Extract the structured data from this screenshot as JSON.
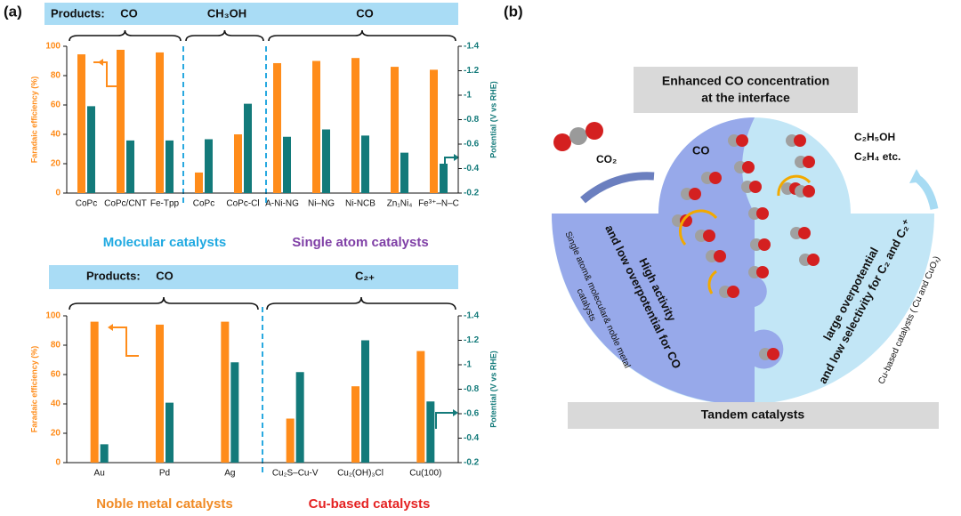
{
  "panels": [
    "(a)",
    "(b)"
  ],
  "chart_data": [
    {
      "type": "bar",
      "products_label": "Products:",
      "products": [
        "CO",
        "CH₃OH",
        "CO"
      ],
      "groups": [
        "Molecular catalysts",
        "Single atom catalysts"
      ],
      "ylabel": "Faradaic efficiency (%)",
      "y2label": "Potential  (V vs RHE)",
      "categories": [
        "CoPc",
        "CoPc/CNT",
        "Fe-Tpp",
        "CoPc",
        "CoPc-Cl",
        "A-Ni-NG",
        "Ni–NG",
        "Ni-NCB",
        "Zn₁Ni₄",
        "Fe³⁺–N–C"
      ],
      "series": [
        {
          "color": "#ff8c1a",
          "values": [
            94.5,
            97.6,
            95.8,
            14,
            40,
            88.5,
            90,
            92,
            86,
            84
          ]
        },
        {
          "color": "#137a7a",
          "axis": "y2",
          "values": [
            -0.91,
            -0.63,
            -0.63,
            -0.64,
            -0.93,
            -0.66,
            -0.72,
            -0.67,
            -0.53,
            -0.44
          ]
        }
      ],
      "ylim": [
        0,
        100
      ],
      "yticks": [
        0,
        20,
        40,
        60,
        80,
        100
      ],
      "y2lim": [
        -0.2,
        -1.4
      ],
      "y2ticks": [
        -0.2,
        -0.4,
        -0.6,
        -0.8,
        -1.0,
        -1.2,
        -1.4
      ]
    },
    {
      "type": "bar",
      "products_label": "Products:",
      "products": [
        "CO",
        "C₂₊"
      ],
      "groups": [
        "Noble metal catalysts",
        "Cu-based catalysts"
      ],
      "ylabel": "Faradaic efficiency (%)",
      "y2label": "Potential  (V vs RHE)",
      "categories": [
        "Au",
        "Pd",
        "Ag",
        "Cu₂S–Cu-V",
        "Cu₂(OH)₃Cl",
        "Cu(100)"
      ],
      "series": [
        {
          "color": "#ff8c1a",
          "values": [
            96,
            94,
            96,
            30,
            52,
            76
          ]
        },
        {
          "color": "#137a7a",
          "axis": "y2",
          "values": [
            -0.35,
            -0.69,
            -1.02,
            -0.94,
            -1.2,
            -0.7
          ]
        }
      ],
      "ylim": [
        0,
        100
      ],
      "yticks": [
        0,
        20,
        40,
        60,
        80,
        100
      ],
      "y2lim": [
        -0.2,
        -1.4
      ],
      "y2ticks": [
        -0.2,
        -0.4,
        -0.6,
        -0.8,
        -1.0,
        -1.2,
        -1.4
      ]
    }
  ],
  "diagram": {
    "top_box": [
      "Enhanced CO concentration",
      "at the interface"
    ],
    "co2": "CO₂",
    "co": "CO",
    "products": [
      "C₂H₅OH",
      "C₂H₄ etc."
    ],
    "left_text": [
      "High activity",
      "and low overpotential for CO"
    ],
    "right_text": [
      "large overpotential",
      "and low selectivity for C₂ and C₂⁺"
    ],
    "left_arc": [
      "Single atom& molecular& noble metal",
      "catalysts"
    ],
    "right_arc": "Cu-based catalysts ( Cu and CuOₓ)",
    "bottom_box": "Tandem catalysts"
  }
}
